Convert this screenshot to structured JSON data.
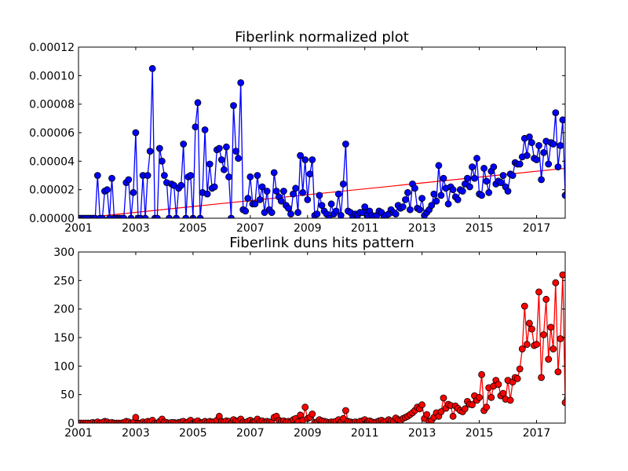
{
  "chart_data": [
    {
      "type": "line",
      "title": "Fiberlink normalized plot",
      "xlabel": "",
      "ylabel": "",
      "xlim": [
        2001,
        2018
      ],
      "ylim": [
        0,
        0.00012
      ],
      "xticks": [
        "2001",
        "2003",
        "2005",
        "2007",
        "2009",
        "2011",
        "2013",
        "2015",
        "2017"
      ],
      "yticks": [
        "0.00000",
        "0.00002",
        "0.00004",
        "0.00006",
        "0.00008",
        "0.00010",
        "0.00012"
      ],
      "grid": false,
      "series": [
        {
          "color": "#0000ff",
          "marker": "circle",
          "x_start": 2001.0,
          "x_step": 0.08333,
          "values": [
            0,
            0,
            0,
            0,
            0,
            0,
            0,
            0,
            3e-05,
            0,
            0,
            1.9e-05,
            2e-05,
            0,
            2.8e-05,
            0,
            0,
            0,
            0,
            0,
            2.5e-05,
            2.7e-05,
            0,
            1.8e-05,
            6e-05,
            0,
            0,
            3e-05,
            0,
            3e-05,
            4.7e-05,
            0.000105,
            0,
            0,
            4.9e-05,
            4e-05,
            3e-05,
            2.5e-05,
            0,
            2.4e-05,
            2.3e-05,
            0,
            2.1e-05,
            2.3e-05,
            5.2e-05,
            0,
            2.9e-05,
            3e-05,
            0,
            6.4e-05,
            8.1e-05,
            0,
            1.8e-05,
            6.2e-05,
            1.7e-05,
            3.8e-05,
            2.1e-05,
            2.2e-05,
            4.8e-05,
            4.9e-05,
            4.1e-05,
            3.4e-05,
            5e-05,
            2.9e-05,
            0,
            7.9e-05,
            4.7e-05,
            4.2e-05,
            9.5e-05,
            6e-06,
            5e-06,
            1.4e-05,
            2.9e-05,
            1e-05,
            1e-05,
            3e-05,
            1.3e-05,
            2.2e-05,
            4e-06,
            1.9e-05,
            6e-06,
            4e-06,
            3.2e-05,
            1.9e-05,
            1.5e-05,
            1.2e-05,
            1.9e-05,
            9e-06,
            7e-06,
            3e-06,
            1.7e-05,
            2.1e-05,
            4e-06,
            4.4e-05,
            1.8e-05,
            4.1e-05,
            1.3e-05,
            3.1e-05,
            4.1e-05,
            2e-06,
            3e-06,
            1.6e-05,
            9e-06,
            5e-06,
            3e-06,
            0,
            1e-05,
            3e-06,
            5e-06,
            1.7e-05,
            2e-06,
            2.4e-05,
            5.2e-05,
            5e-06,
            4e-06,
            1e-06,
            3e-06,
            2e-06,
            4e-06,
            4e-06,
            8e-06,
            2e-06,
            5e-06,
            2e-06,
            1e-06,
            2e-06,
            5e-06,
            4e-06,
            1e-06,
            2e-06,
            3e-06,
            6e-06,
            4e-06,
            3e-06,
            9e-06,
            7e-06,
            8e-06,
            1.3e-05,
            1.8e-05,
            6e-06,
            2.4e-05,
            2.1e-05,
            7e-06,
            6e-06,
            1.4e-05,
            2e-06,
            4e-06,
            6e-06,
            9e-06,
            1.7e-05,
            1.2e-05,
            3.7e-05,
            1.6e-05,
            2.8e-05,
            2.1e-05,
            1e-05,
            2.2e-05,
            2e-05,
            1.5e-05,
            1.3e-05,
            2e-05,
            1.9e-05,
            2.4e-05,
            2.8e-05,
            2.2e-05,
            3.6e-05,
            2.8e-05,
            4.2e-05,
            1.7e-05,
            1.6e-05,
            3.5e-05,
            2.6e-05,
            1.8e-05,
            3.3e-05,
            3.6e-05,
            2.4e-05,
            2.6e-05,
            2.5e-05,
            3e-05,
            2.2e-05,
            1.9e-05,
            3.1e-05,
            3e-05,
            3.9e-05,
            3.8e-05,
            3.8e-05,
            4.3e-05,
            5.6e-05,
            4.4e-05,
            5.7e-05,
            5.3e-05,
            4.2e-05,
            4.1e-05,
            5.1e-05,
            2.7e-05,
            4.6e-05,
            5.4e-05,
            3.8e-05,
            5.3e-05,
            5.2e-05,
            7.4e-05,
            3.6e-05,
            5.1e-05,
            6.9e-05,
            1.6e-05,
            1.8e-05
          ]
        }
      ],
      "trendline": {
        "color": "#ff0000",
        "x": [
          2001,
          2018
        ],
        "y": [
          0.0,
          3.5e-05
        ]
      }
    },
    {
      "type": "line",
      "title": "Fiberlink duns hits pattern",
      "xlabel": "",
      "ylabel": "",
      "xlim": [
        2001,
        2018
      ],
      "ylim": [
        0,
        300
      ],
      "xticks": [
        "2001",
        "2003",
        "2005",
        "2007",
        "2009",
        "2011",
        "2013",
        "2015",
        "2017"
      ],
      "yticks": [
        "0",
        "50",
        "100",
        "150",
        "200",
        "250",
        "300"
      ],
      "grid": false,
      "series": [
        {
          "color": "#ff0000",
          "marker": "circle",
          "x_start": 2001.0,
          "x_step": 0.08333,
          "values": [
            0,
            0,
            0,
            0,
            0,
            0,
            1,
            0,
            2,
            0,
            1,
            3,
            2,
            0,
            1,
            0,
            0,
            0,
            0,
            1,
            3,
            2,
            0,
            1,
            10,
            0,
            0,
            2,
            0,
            3,
            2,
            5,
            0,
            0,
            3,
            7,
            2,
            1,
            0,
            1,
            1,
            0,
            1,
            2,
            3,
            0,
            2,
            5,
            0,
            2,
            4,
            0,
            1,
            3,
            1,
            3,
            2,
            2,
            5,
            12,
            3,
            2,
            4,
            3,
            0,
            6,
            4,
            3,
            7,
            2,
            1,
            3,
            5,
            2,
            3,
            7,
            3,
            4,
            1,
            3,
            2,
            1,
            10,
            12,
            5,
            3,
            4,
            2,
            3,
            2,
            6,
            8,
            2,
            14,
            5,
            28,
            8,
            10,
            16,
            1,
            2,
            6,
            4,
            3,
            2,
            1,
            2,
            2,
            3,
            6,
            2,
            8,
            22,
            3,
            2,
            1,
            2,
            1,
            3,
            4,
            6,
            2,
            4,
            2,
            1,
            2,
            4,
            5,
            2,
            3,
            6,
            4,
            3,
            9,
            6,
            5,
            8,
            10,
            12,
            15,
            18,
            22,
            28,
            25,
            32,
            8,
            15,
            3,
            5,
            10,
            18,
            12,
            20,
            44,
            26,
            33,
            31,
            12,
            30,
            26,
            22,
            20,
            25,
            38,
            33,
            32,
            48,
            40,
            45,
            85,
            22,
            28,
            62,
            45,
            65,
            75,
            68,
            48,
            52,
            42,
            75,
            40,
            72,
            80,
            78,
            95,
            130,
            205,
            138,
            175,
            165,
            136,
            138,
            230,
            80,
            155,
            217,
            112,
            168,
            130,
            246,
            90,
            148,
            260,
            36,
            44,
            24
          ]
        }
      ]
    }
  ]
}
